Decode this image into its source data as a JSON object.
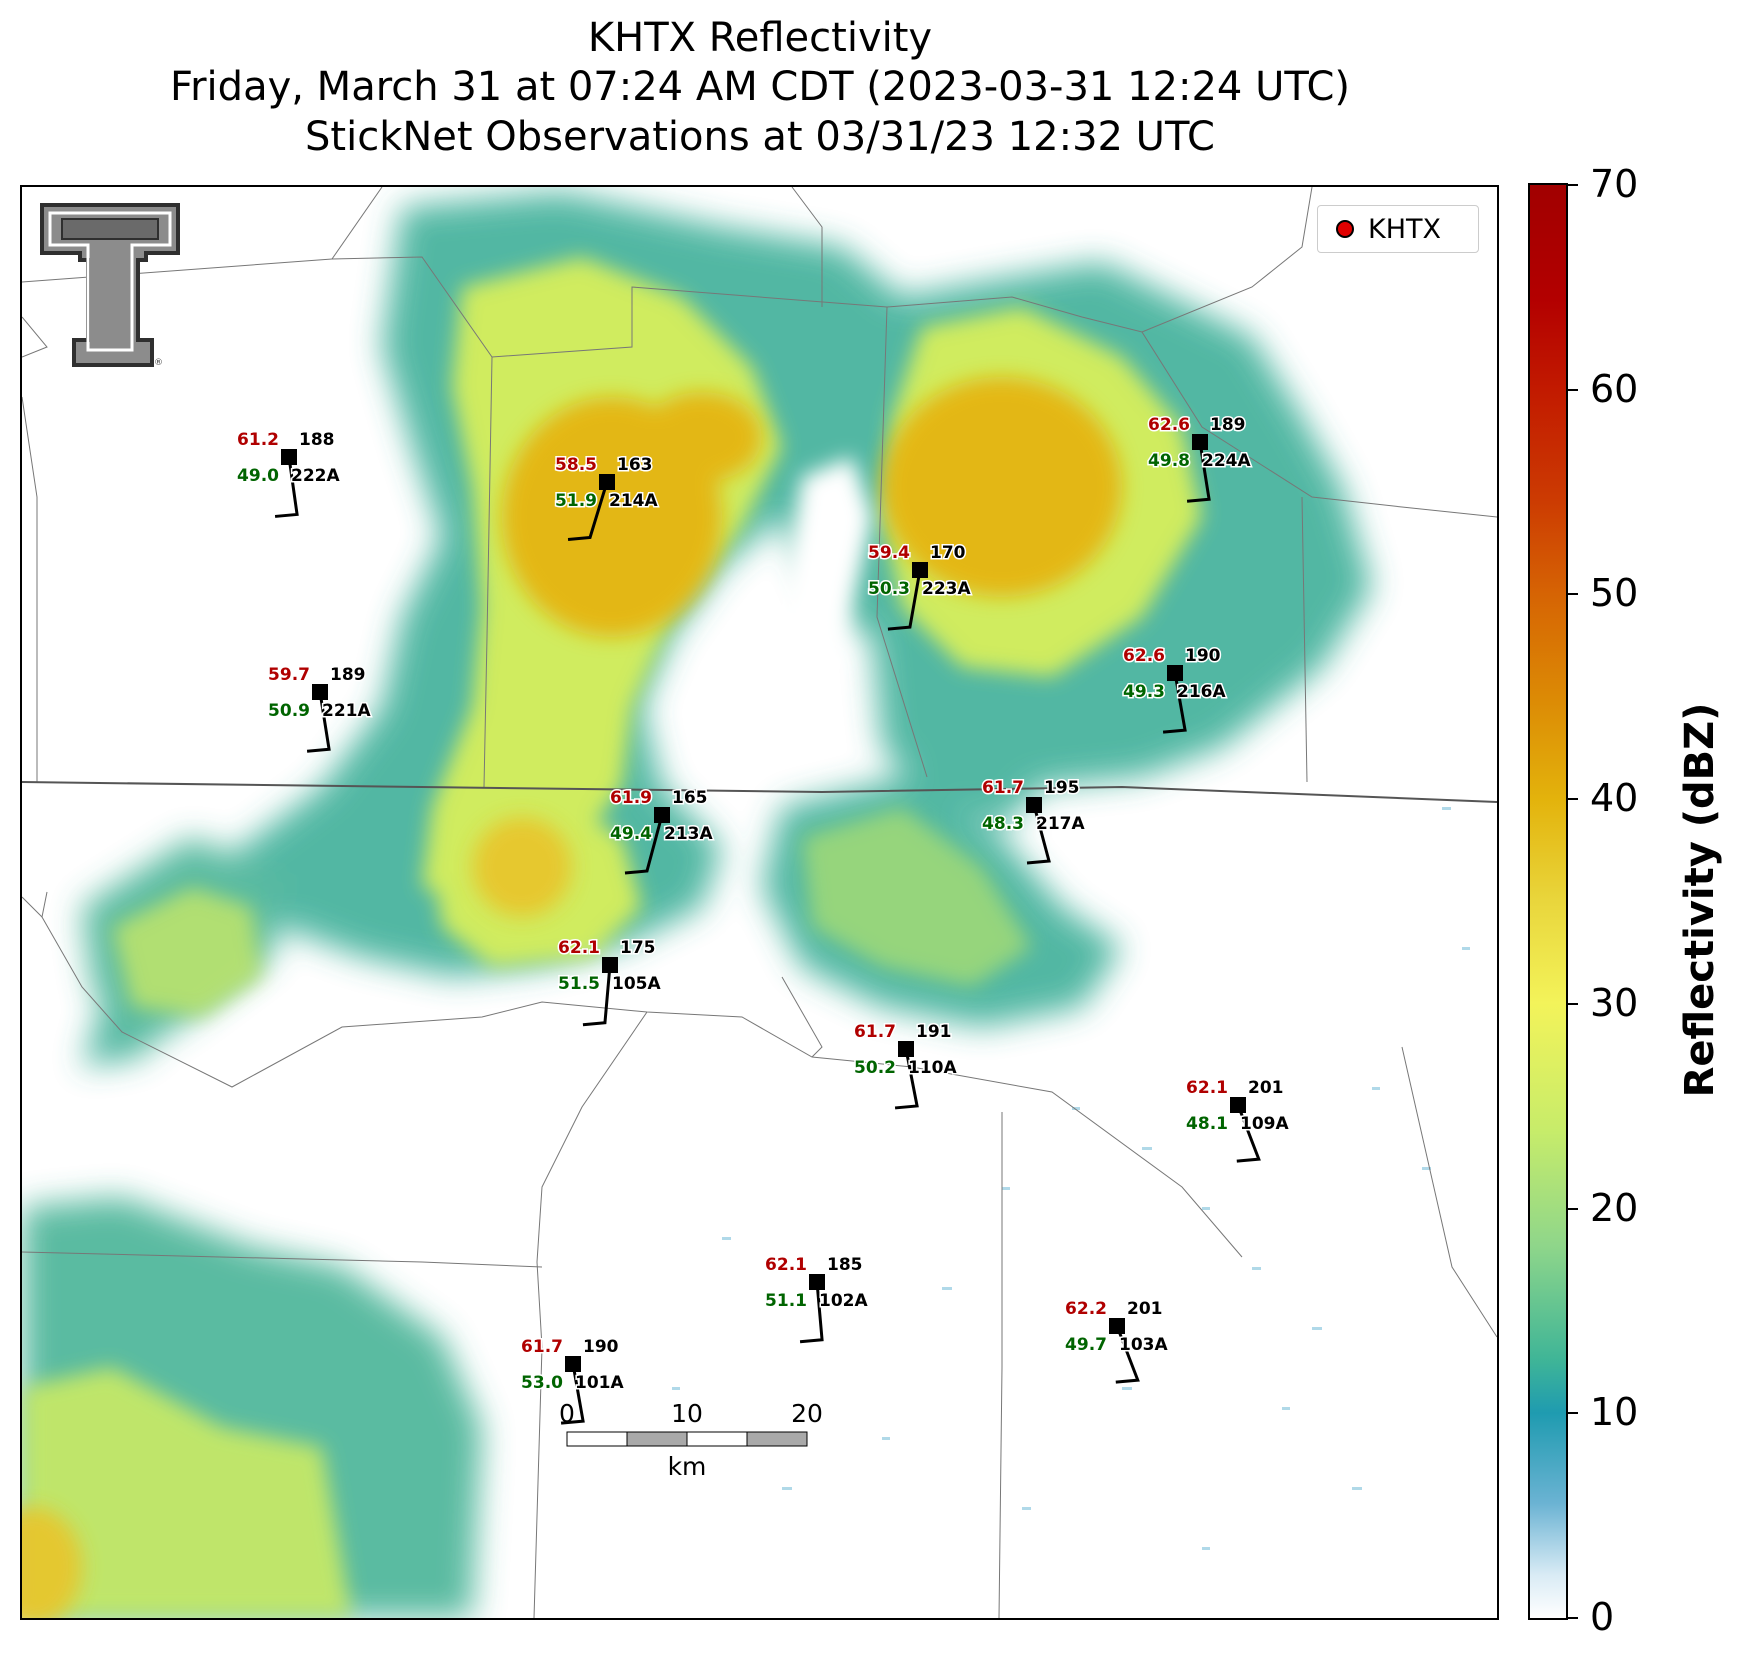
{
  "title": {
    "line1": "KHTX Reflectivity",
    "line2": "Friday, March 31 at 07:24 AM CDT (2023-03-31 12:24 UTC)",
    "line3": "StickNet Observations at 03/31/23 12:32 UTC"
  },
  "legend": {
    "label": "KHTX",
    "marker_color": "#e00000"
  },
  "colorbar": {
    "label": "Reflectivity (dBZ)",
    "min": 0,
    "max": 70,
    "ticks": [
      "0",
      "10",
      "20",
      "30",
      "40",
      "50",
      "60",
      "70"
    ]
  },
  "scalebar": {
    "ticks": [
      "0",
      "10",
      "20"
    ],
    "unit": "km"
  },
  "colors": {
    "temperature": "#b00000",
    "dewpoint": "#006400",
    "station": "#000000"
  },
  "stations": [
    {
      "id": "222A",
      "temp": "61.2",
      "dew": "49.0",
      "dir": "188"
    },
    {
      "id": "214A",
      "temp": "58.5",
      "dew": "51.9",
      "dir": "163"
    },
    {
      "id": "223A",
      "temp": "59.4",
      "dew": "50.3",
      "dir": "170"
    },
    {
      "id": "224A",
      "temp": "62.6",
      "dew": "49.8",
      "dir": "189"
    },
    {
      "id": "221A",
      "temp": "59.7",
      "dew": "50.9",
      "dir": "189"
    },
    {
      "id": "216A",
      "temp": "62.6",
      "dew": "49.3",
      "dir": "190"
    },
    {
      "id": "213A",
      "temp": "61.9",
      "dew": "49.4",
      "dir": "165"
    },
    {
      "id": "217A",
      "temp": "61.7",
      "dew": "48.3",
      "dir": "195"
    },
    {
      "id": "105A",
      "temp": "62.1",
      "dew": "51.5",
      "dir": "175"
    },
    {
      "id": "110A",
      "temp": "61.7",
      "dew": "50.2",
      "dir": "191"
    },
    {
      "id": "109A",
      "temp": "62.1",
      "dew": "48.1",
      "dir": "201"
    },
    {
      "id": "102A",
      "temp": "62.1",
      "dew": "51.1",
      "dir": "185"
    },
    {
      "id": "103A",
      "temp": "62.2",
      "dew": "49.7",
      "dir": "201"
    },
    {
      "id": "101A",
      "temp": "61.7",
      "dew": "53.0",
      "dir": "190"
    }
  ]
}
